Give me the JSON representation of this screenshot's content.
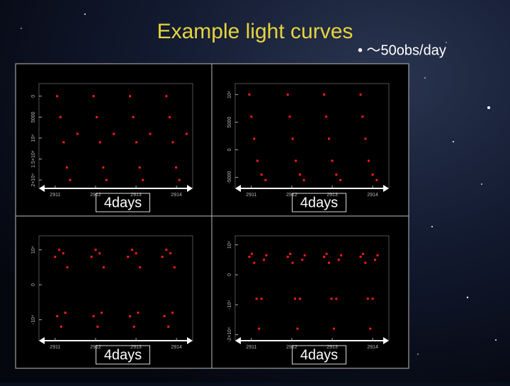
{
  "title": "Example light curves",
  "bullet": "• ～50obs/day",
  "chart_data": [
    {
      "type": "scatter",
      "annotation": "4days",
      "color": "#ff1a1a",
      "xlim": [
        2910.6,
        2914.4
      ],
      "xticks": [
        2911,
        2912,
        2913,
        2914
      ],
      "ylim": [
        22000,
        -3000
      ],
      "yticks": [
        0,
        5000,
        {
          "value": 10000,
          "label": "10⁴"
        },
        {
          "value": 15000,
          "label": "1.5×10⁴"
        },
        {
          "value": 20000,
          "label": "2×10⁴"
        }
      ],
      "x": [
        2911.05,
        2911.13,
        2911.21,
        2911.29,
        2911.37,
        2911.55,
        2911.95,
        2912.03,
        2912.11,
        2912.19,
        2912.27,
        2912.45,
        2912.85,
        2912.93,
        2913.01,
        2913.09,
        2913.17,
        2913.35,
        2913.75,
        2913.83,
        2913.91,
        2913.99,
        2914.07,
        2914.25
      ],
      "values": [
        0,
        5000,
        11000,
        17000,
        20000,
        9000,
        0,
        5000,
        11000,
        17000,
        20000,
        9000,
        0,
        5000,
        11000,
        17000,
        20000,
        9000,
        0,
        5000,
        11000,
        17000,
        20000,
        9000
      ]
    },
    {
      "type": "scatter",
      "annotation": "4days",
      "color": "#ff1a1a",
      "xlim": [
        2910.6,
        2914.4
      ],
      "xticks": [
        2911,
        2912,
        2913,
        2914
      ],
      "ylim": [
        -7000,
        12000
      ],
      "yticks": [
        -5000,
        0,
        5000,
        {
          "value": 10000,
          "label": "10⁴"
        }
      ],
      "x": [
        2910.95,
        2911.0,
        2911.07,
        2911.15,
        2911.25,
        2911.35,
        2911.9,
        2911.95,
        2912.02,
        2912.1,
        2912.2,
        2912.3,
        2912.8,
        2912.85,
        2912.92,
        2913.0,
        2913.1,
        2913.2,
        2913.7,
        2913.75,
        2913.82,
        2913.9,
        2914.0,
        2914.1
      ],
      "values": [
        10000,
        6000,
        2000,
        -2000,
        -4500,
        -5500,
        10000,
        6000,
        2000,
        -2000,
        -4500,
        -5500,
        10000,
        6000,
        2000,
        -2000,
        -4500,
        -5500,
        10000,
        6000,
        2000,
        -2000,
        -4500,
        -5500
      ]
    },
    {
      "type": "scatter",
      "annotation": "4days",
      "color": "#ff1a1a",
      "xlim": [
        2910.6,
        2914.4
      ],
      "xticks": [
        2911,
        2912,
        2913,
        2914
      ],
      "ylim": [
        -16000,
        14000
      ],
      "yticks": [
        {
          "value": -10000,
          "label": "-10⁴"
        },
        0,
        {
          "value": 10000,
          "label": "10⁴"
        }
      ],
      "x": [
        2911.0,
        2911.05,
        2911.1,
        2911.15,
        2911.2,
        2911.25,
        2911.3,
        2911.9,
        2911.95,
        2912.0,
        2912.05,
        2912.1,
        2912.15,
        2912.2,
        2912.8,
        2912.85,
        2912.9,
        2912.95,
        2913.0,
        2913.05,
        2913.1,
        2913.65,
        2913.7,
        2913.75,
        2913.8,
        2913.85,
        2913.9,
        2913.95
      ],
      "values": [
        8000,
        -9000,
        10000,
        -12000,
        9000,
        -8000,
        5000,
        8000,
        -9000,
        10000,
        -12000,
        9000,
        -8000,
        5000,
        8000,
        -9000,
        10000,
        -12000,
        9000,
        -8000,
        5000,
        8000,
        -9000,
        10000,
        -12000,
        9000,
        -8000,
        5000
      ]
    },
    {
      "type": "scatter",
      "annotation": "4days",
      "color": "#ff1a1a",
      "xlim": [
        2910.6,
        2914.4
      ],
      "xticks": [
        2911,
        2912,
        2913,
        2914
      ],
      "ylim": [
        -22000,
        13000
      ],
      "yticks": [
        {
          "value": -20000,
          "label": "-2×10⁴"
        },
        {
          "value": -10000,
          "label": "-10⁴"
        },
        0,
        {
          "value": 10000,
          "label": "10⁴"
        }
      ],
      "x": [
        2910.95,
        2911.01,
        2911.07,
        2911.13,
        2911.19,
        2911.25,
        2911.31,
        2911.37,
        2911.9,
        2911.96,
        2912.02,
        2912.08,
        2912.14,
        2912.2,
        2912.26,
        2912.32,
        2912.8,
        2912.86,
        2912.92,
        2912.98,
        2913.04,
        2913.1,
        2913.16,
        2913.22,
        2913.7,
        2913.76,
        2913.82,
        2913.88,
        2913.94,
        2914.0,
        2914.06,
        2914.12
      ],
      "values": [
        6000,
        7000,
        4000,
        -8000,
        -18000,
        -8000,
        5000,
        6500,
        6000,
        7000,
        4000,
        -8000,
        -18000,
        -8000,
        5000,
        6500,
        6000,
        7000,
        4000,
        -8000,
        -18000,
        -8000,
        5000,
        6500,
        6000,
        7000,
        4000,
        -8000,
        -18000,
        -8000,
        5000,
        6500
      ]
    }
  ]
}
